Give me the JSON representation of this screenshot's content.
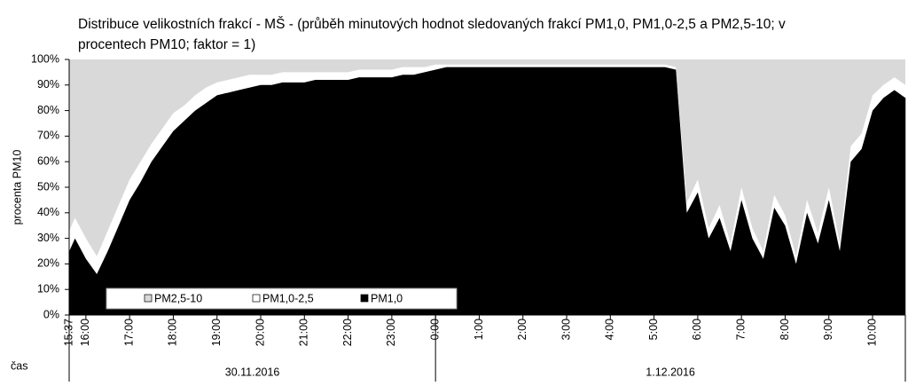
{
  "chart_data": {
    "type": "stacked_area_percent",
    "title": "Distribuce velikostních frakcí - MŠ - (průběh minutových hodnot sledovaných frakcí PM1,0, PM1,0-2,5 a PM2,5-10; v procentech PM10; faktor = 1)",
    "y_label": "procenta PM10",
    "x_label": "čas",
    "date_labels": [
      "30.11.2016",
      "1.12.2016"
    ],
    "x": [
      15.62,
      15.75,
      16,
      16.25,
      16.5,
      16.75,
      17,
      17.25,
      17.5,
      17.75,
      18,
      18.25,
      18.5,
      18.75,
      19,
      19.25,
      19.5,
      19.75,
      20,
      20.25,
      20.5,
      20.75,
      21,
      21.25,
      21.5,
      21.75,
      22,
      22.25,
      22.5,
      22.75,
      23,
      23.25,
      23.5,
      23.75,
      24,
      24.25,
      24.5,
      24.75,
      25,
      25.25,
      25.5,
      25.75,
      26,
      26.25,
      26.5,
      26.75,
      27,
      27.25,
      27.5,
      27.75,
      28,
      28.25,
      28.5,
      28.75,
      29,
      29.25,
      29.5,
      29.75,
      30,
      30.25,
      30.5,
      30.75,
      31,
      31.25,
      31.5,
      31.75,
      32,
      32.25,
      32.5,
      32.75,
      33,
      33.25,
      33.5,
      33.75,
      34,
      34.25,
      34.5,
      34.75
    ],
    "series": [
      {
        "name": "PM1,0",
        "color": "#000000",
        "values": [
          25,
          30,
          22,
          16,
          25,
          35,
          45,
          52,
          60,
          66,
          72,
          76,
          80,
          83,
          86,
          87,
          88,
          89,
          90,
          90,
          91,
          91,
          91,
          92,
          92,
          92,
          92,
          93,
          93,
          93,
          93,
          94,
          94,
          95,
          96,
          97,
          97,
          97,
          97,
          97,
          97,
          97,
          97,
          97,
          97,
          97,
          97,
          97,
          97,
          97,
          97,
          97,
          97,
          97,
          97,
          97,
          96,
          40,
          48,
          30,
          38,
          25,
          45,
          30,
          22,
          42,
          35,
          20,
          40,
          28,
          45,
          25,
          60,
          65,
          80,
          85,
          88,
          85
        ]
      },
      {
        "name": "PM1,0-2,5",
        "color": "#ffffff",
        "values": [
          8,
          8,
          8,
          7,
          8,
          8,
          8,
          8,
          7,
          7,
          7,
          6,
          6,
          6,
          5,
          5,
          5,
          5,
          4,
          4,
          4,
          4,
          4,
          3,
          3,
          3,
          3,
          3,
          3,
          3,
          3,
          3,
          3,
          2,
          2,
          1,
          1,
          1,
          1,
          1,
          1,
          1,
          1,
          1,
          1,
          1,
          1,
          1,
          1,
          1,
          1,
          1,
          1,
          1,
          1,
          1,
          1,
          4,
          5,
          4,
          5,
          3,
          5,
          4,
          3,
          5,
          4,
          3,
          5,
          4,
          5,
          3,
          6,
          6,
          6,
          5,
          5,
          5
        ]
      },
      {
        "name": "PM2,5-10",
        "color": "#d9d9d9",
        "values": [
          67,
          62,
          70,
          77,
          67,
          57,
          47,
          40,
          33,
          27,
          21,
          18,
          14,
          11,
          9,
          8,
          7,
          6,
          6,
          6,
          5,
          5,
          5,
          5,
          5,
          5,
          5,
          4,
          4,
          4,
          4,
          3,
          3,
          3,
          2,
          2,
          2,
          2,
          2,
          2,
          2,
          2,
          2,
          2,
          2,
          2,
          2,
          2,
          2,
          2,
          2,
          2,
          2,
          2,
          2,
          2,
          3,
          56,
          47,
          66,
          57,
          72,
          50,
          66,
          75,
          53,
          61,
          77,
          55,
          68,
          50,
          72,
          34,
          29,
          14,
          10,
          7,
          10
        ]
      }
    ],
    "legend_order": [
      2,
      1,
      0
    ],
    "xlim": [
      15.617,
      34.75
    ],
    "xticks": [
      {
        "value": 15.617,
        "label": "15:37"
      },
      {
        "value": 16,
        "label": "16:00"
      },
      {
        "value": 17,
        "label": "17:00"
      },
      {
        "value": 18,
        "label": "18:00"
      },
      {
        "value": 19,
        "label": "19:00"
      },
      {
        "value": 20,
        "label": "20:00"
      },
      {
        "value": 21,
        "label": "21:00"
      },
      {
        "value": 22,
        "label": "22:00"
      },
      {
        "value": 23,
        "label": "23:00"
      },
      {
        "value": 24,
        "label": "0:00"
      },
      {
        "value": 25,
        "label": "1:00"
      },
      {
        "value": 26,
        "label": "2:00"
      },
      {
        "value": 27,
        "label": "3:00"
      },
      {
        "value": 28,
        "label": "4:00"
      },
      {
        "value": 29,
        "label": "5:00"
      },
      {
        "value": 30,
        "label": "6:00"
      },
      {
        "value": 31,
        "label": "7:00"
      },
      {
        "value": 32,
        "label": "8:00"
      },
      {
        "value": 33,
        "label": "9:00"
      },
      {
        "value": 34,
        "label": "10:00"
      }
    ],
    "date_bounds": [
      15.617,
      24,
      34.75
    ],
    "ylim": [
      0,
      100
    ],
    "yticks": [
      {
        "value": 0,
        "label": "0%"
      },
      {
        "value": 10,
        "label": "10%"
      },
      {
        "value": 20,
        "label": "20%"
      },
      {
        "value": 30,
        "label": "30%"
      },
      {
        "value": 40,
        "label": "40%"
      },
      {
        "value": 50,
        "label": "50%"
      },
      {
        "value": 60,
        "label": "60%"
      },
      {
        "value": 70,
        "label": "70%"
      },
      {
        "value": 80,
        "label": "80%"
      },
      {
        "value": 90,
        "label": "90%"
      },
      {
        "value": 100,
        "label": "100%"
      }
    ]
  }
}
